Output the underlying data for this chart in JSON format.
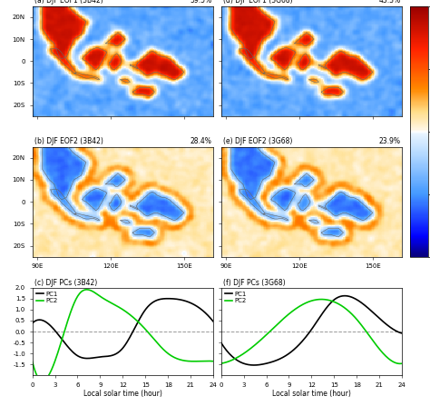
{
  "title_a": "(a) DJF EOF1 (3B42)",
  "title_b": "(b) DJF EOF2 (3B42)",
  "title_c": "(c) DJF PCs (3B42)",
  "title_d": "(d) DJF EOF1 (3G68)",
  "title_e": "(e) DJF EOF2 (3G68)",
  "title_f": "(f) DJF PCs (3G68)",
  "pct_a": "59.5%",
  "pct_b": "28.4%",
  "pct_d": "43.3%",
  "pct_e": "23.9%",
  "lon_min": 88,
  "lon_max": 162,
  "lat_min": -25,
  "lat_max": 25,
  "lon_ticks": [
    90,
    120,
    150
  ],
  "lon_labels": [
    "90E",
    "120E",
    "150E"
  ],
  "lat_ticks": [
    -20,
    -10,
    0,
    10,
    20
  ],
  "lat_labels": [
    "20S",
    "10S",
    "0",
    "10N",
    "20N"
  ],
  "pc_hours": [
    0,
    3,
    6,
    9,
    12,
    15,
    18,
    21,
    24
  ],
  "pc1_3b42": [
    0.38,
    0.05,
    -1.1,
    -1.15,
    -0.75,
    1.0,
    1.5,
    1.3,
    0.45
  ],
  "pc2_3b42": [
    -1.35,
    -1.35,
    1.6,
    1.6,
    1.0,
    0.1,
    -1.0,
    -1.35,
    -1.35
  ],
  "pc1_3g68": [
    -0.5,
    -1.45,
    -1.45,
    -1.0,
    0.1,
    1.45,
    1.45,
    0.6,
    -0.08
  ],
  "pc2_3g68": [
    -1.45,
    -1.0,
    -0.15,
    0.8,
    1.4,
    1.35,
    0.55,
    -0.8,
    -1.45
  ],
  "pc_ylim": [
    -2.0,
    2.0
  ],
  "pc_xticks": [
    0,
    3,
    6,
    9,
    12,
    15,
    18,
    21,
    24
  ],
  "xlabel": "Local solar time (hour)",
  "pc1_color": "#000000",
  "pc2_color": "#00cc00",
  "legend_pc1": "PC1",
  "legend_pc2": "PC2",
  "background_color": "#ffffff"
}
